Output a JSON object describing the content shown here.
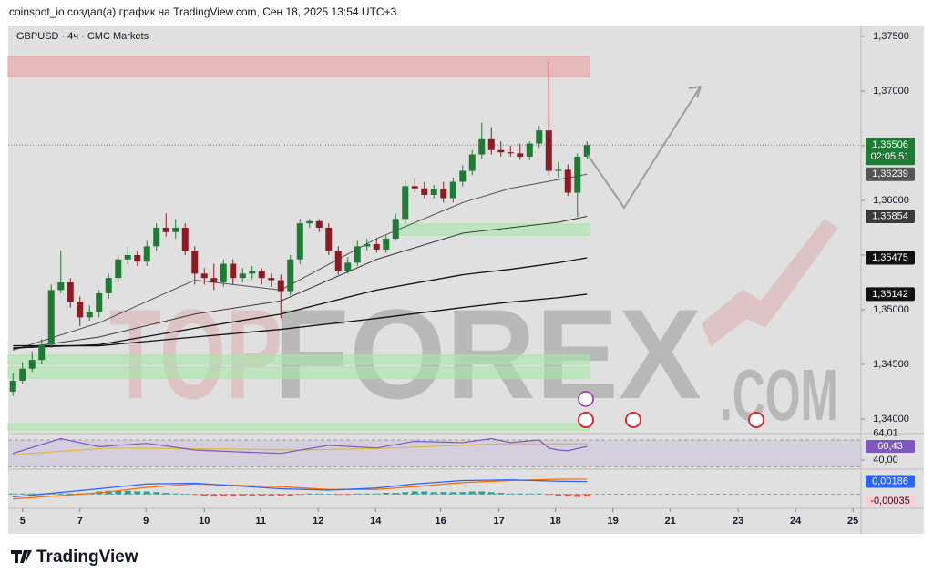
{
  "chart_data": {
    "type": "candlestick",
    "header": "coinspot_io создал(а) график на TradingView.com, Сен 18, 2025 13:54 UTC+3",
    "title": "GBPUSD · 4ч · CMC Markets",
    "x": [
      0,
      1,
      2,
      3,
      4,
      5,
      6,
      7,
      8,
      9,
      10,
      11,
      12,
      13,
      14,
      15,
      16,
      17,
      18,
      19,
      20,
      21,
      22,
      23,
      24,
      25,
      26,
      27,
      28,
      29,
      30,
      31,
      32,
      33,
      34,
      35,
      36,
      37,
      38,
      39,
      40,
      41,
      42,
      43,
      44,
      45,
      46,
      47,
      48,
      49,
      50,
      51,
      52,
      53,
      54,
      55,
      56,
      57,
      58,
      59,
      60
    ],
    "open": [
      1.3425,
      1.3435,
      1.3446,
      1.3454,
      1.3468,
      1.3518,
      1.3525,
      1.3507,
      1.3493,
      1.3498,
      1.3515,
      1.3529,
      1.3546,
      1.355,
      1.3544,
      1.3558,
      1.3575,
      1.3571,
      1.3575,
      1.3554,
      1.3533,
      1.3529,
      1.3525,
      1.3542,
      1.3529,
      1.3533,
      1.3535,
      1.3529,
      1.3527,
      1.3517,
      1.3546,
      1.3579,
      1.3581,
      1.3575,
      1.3554,
      1.3535,
      1.3543,
      1.3558,
      1.356,
      1.3555,
      1.3565,
      1.3583,
      1.3613,
      1.3611,
      1.3605,
      1.361,
      1.3602,
      1.3617,
      1.3627,
      1.3642,
      1.3656,
      1.3646,
      1.3644,
      1.3643,
      1.364,
      1.3652,
      1.3664,
      1.3627,
      1.3628,
      1.3607,
      1.364
    ],
    "high": [
      1.3442,
      1.3452,
      1.3462,
      1.3473,
      1.3523,
      1.3554,
      1.3529,
      1.3512,
      1.3504,
      1.3518,
      1.3533,
      1.355,
      1.3557,
      1.3554,
      1.3563,
      1.3579,
      1.3588,
      1.3583,
      1.3579,
      1.3558,
      1.3538,
      1.3542,
      1.3546,
      1.3546,
      1.3538,
      1.354,
      1.3538,
      1.3533,
      1.3532,
      1.355,
      1.3583,
      1.3583,
      1.3583,
      1.3579,
      1.3558,
      1.3548,
      1.3563,
      1.3565,
      1.3565,
      1.3568,
      1.3588,
      1.3618,
      1.3621,
      1.3617,
      1.3614,
      1.3617,
      1.3621,
      1.3632,
      1.3646,
      1.3671,
      1.3667,
      1.3654,
      1.365,
      1.3652,
      1.3654,
      1.3668,
      1.3727,
      1.3635,
      1.3633,
      1.3643,
      1.3654
    ],
    "low": [
      1.3421,
      1.3432,
      1.3443,
      1.345,
      1.3465,
      1.3515,
      1.3502,
      1.3485,
      1.349,
      1.3493,
      1.351,
      1.3525,
      1.3542,
      1.354,
      1.354,
      1.3554,
      1.3567,
      1.3565,
      1.355,
      1.3523,
      1.3523,
      1.3518,
      1.3521,
      1.3523,
      1.3525,
      1.3528,
      1.3523,
      1.3521,
      1.3492,
      1.3513,
      1.3542,
      1.3575,
      1.3571,
      1.355,
      1.3532,
      1.3533,
      1.354,
      1.3554,
      1.3552,
      1.3552,
      1.3563,
      1.3579,
      1.3607,
      1.3602,
      1.3602,
      1.3598,
      1.3598,
      1.3613,
      1.3623,
      1.3638,
      1.3642,
      1.364,
      1.364,
      1.3637,
      1.3637,
      1.3648,
      1.3623,
      1.3621,
      1.3604,
      1.3585,
      1.3638
    ],
    "close": [
      1.3435,
      1.3446,
      1.3454,
      1.3468,
      1.3518,
      1.3525,
      1.3507,
      1.3493,
      1.3498,
      1.3515,
      1.3529,
      1.3546,
      1.355,
      1.3544,
      1.3558,
      1.3575,
      1.3571,
      1.3575,
      1.3554,
      1.3533,
      1.3529,
      1.3525,
      1.3542,
      1.3529,
      1.3533,
      1.3535,
      1.3529,
      1.3527,
      1.3517,
      1.3546,
      1.3579,
      1.3581,
      1.3575,
      1.3554,
      1.3535,
      1.3543,
      1.3558,
      1.356,
      1.3555,
      1.3565,
      1.3583,
      1.3613,
      1.3611,
      1.3605,
      1.361,
      1.3602,
      1.3617,
      1.3627,
      1.3642,
      1.3656,
      1.3646,
      1.3644,
      1.3643,
      1.364,
      1.3652,
      1.3664,
      1.3627,
      1.3628,
      1.3607,
      1.364,
      1.36506
    ],
    "up_color": "#1e7b34",
    "down_color": "#8e1b24",
    "xlim": [
      -0.5,
      88.64
    ],
    "xticks": [
      {
        "value": 1,
        "label": "5"
      },
      {
        "value": 7,
        "label": "7"
      },
      {
        "value": 13.9,
        "label": "9"
      },
      {
        "value": 20,
        "label": "10"
      },
      {
        "value": 25.9,
        "label": "11"
      },
      {
        "value": 31.9,
        "label": "12"
      },
      {
        "value": 37.9,
        "label": "14"
      },
      {
        "value": 44.7,
        "label": "16"
      },
      {
        "value": 50.8,
        "label": "17"
      },
      {
        "value": 56.7,
        "label": "18"
      },
      {
        "value": 62.7,
        "label": "19"
      },
      {
        "value": 68.7,
        "label": "21"
      },
      {
        "value": 75.8,
        "label": "23"
      },
      {
        "value": 81.8,
        "label": "24"
      },
      {
        "value": 87.8,
        "label": "25"
      }
    ],
    "ylim": [
      1.33883,
      1.37583
    ],
    "yticks": [
      {
        "value": 1.34,
        "label": "1,34000"
      },
      {
        "value": 1.345,
        "label": "1,34500"
      },
      {
        "value": 1.35,
        "label": "1,35000"
      },
      {
        "value": 1.355,
        "label": "1,35500"
      },
      {
        "value": 1.36,
        "label": "1,36000"
      },
      {
        "value": 1.365,
        "label": "1,36500"
      },
      {
        "value": 1.37,
        "label": "1,37000"
      },
      {
        "value": 1.375,
        "label": "1,37500"
      }
    ],
    "grid": false,
    "last_price": {
      "value": 1.36506,
      "label": "1,36506",
      "countdown": "02:05:51",
      "color": "#1e7b34"
    },
    "moving_averages": [
      {
        "color": "#555555",
        "x": [
          0,
          9,
          19,
          28,
          38,
          47,
          52,
          57,
          60
        ],
        "values": [
          1.3463,
          1.3488,
          1.3527,
          1.3518,
          1.3565,
          1.3598,
          1.3611,
          1.3619,
          1.36239
        ],
        "value_label": "1,36239"
      },
      {
        "color": "#3a3a3a",
        "x": [
          0,
          9,
          19,
          28,
          38,
          47,
          52,
          57,
          60
        ],
        "values": [
          1.3464,
          1.3475,
          1.3496,
          1.3508,
          1.3546,
          1.357,
          1.3575,
          1.358,
          1.35854
        ],
        "value_label": "1,35854"
      },
      {
        "color": "#111111",
        "x": [
          0,
          9,
          19,
          28,
          38,
          47,
          52,
          57,
          60
        ],
        "values": [
          1.3465,
          1.3468,
          1.3483,
          1.3496,
          1.3518,
          1.3532,
          1.3537,
          1.3543,
          1.35475
        ],
        "value_label": "1,35475"
      },
      {
        "color": "#111111",
        "x": [
          0,
          9,
          19,
          28,
          38,
          47,
          52,
          57,
          60
        ],
        "values": [
          1.3467,
          1.3467,
          1.3475,
          1.3482,
          1.3492,
          1.3502,
          1.3507,
          1.3511,
          1.35142
        ],
        "value_label": "1,35142"
      }
    ],
    "zones": [
      {
        "color": "#e8a0a0",
        "x": [
          -0.5,
          60.3
        ],
        "y": [
          1.37133,
          1.37317
        ]
      },
      {
        "color": "#a8e6a8",
        "x": [
          40.1,
          60.3
        ],
        "y": [
          1.35683,
          1.35783
        ]
      },
      {
        "color": "#a8e6a8",
        "x": [
          -0.5,
          60.3
        ],
        "y": [
          1.345,
          1.34583
        ]
      },
      {
        "color": "#a8e6a8",
        "x": [
          -0.5,
          60.3
        ],
        "y": [
          1.34375,
          1.34475
        ]
      },
      {
        "color": "#a8e6a8",
        "x": [
          -0.5,
          60.3
        ],
        "y": [
          1.339,
          1.33958
        ]
      }
    ],
    "watermark": [
      "TOP",
      "FOREX",
      ".COM"
    ],
    "rsi": {
      "ylim": [
        27.8,
        76.8
      ],
      "band": [
        30,
        70
      ],
      "yticks": [
        {
          "value": 40,
          "label": "40,00"
        }
      ],
      "color": "#7e57c2",
      "x": [
        0,
        5,
        9,
        14,
        19,
        24,
        28,
        33,
        38,
        42,
        47,
        50,
        52,
        55,
        56,
        57,
        58,
        60
      ],
      "values": [
        50,
        72,
        60,
        65,
        55,
        52,
        50,
        62,
        58,
        68,
        66,
        72,
        66,
        70,
        58,
        55,
        54,
        60.43
      ],
      "value_label": "60,43",
      "ma_color": "#e0b93a",
      "ma_x": [
        0,
        10,
        20,
        30,
        40,
        50,
        60
      ],
      "ma_values": [
        48,
        58,
        57,
        55,
        58,
        64,
        64.01
      ],
      "ma_value_label": "64,01"
    },
    "macd": {
      "ylim": [
        -0.0018,
        0.0034
      ],
      "histogram": [
        0.0001,
        0.0001,
        0.0001,
        0.0001,
        0.0001,
        0.0001,
        0.0001,
        0.0001,
        0.0001,
        0.0004,
        0.0005,
        0.0005,
        0.0005,
        0.0004,
        0.0004,
        0.0003,
        0.0002,
        0.0001,
        0,
        -0.0001,
        -0.0002,
        -0.0003,
        -0.0003,
        -0.0003,
        -0.0002,
        -0.0002,
        -0.0002,
        -0.0002,
        -0.0003,
        -0.0002,
        -0.0001,
        0.0001,
        0.0001,
        0,
        -0.0001,
        -0.0001,
        0.0001,
        0.0001,
        0.0001,
        0.0002,
        0.0002,
        0.0003,
        0.0004,
        0.0004,
        0.0003,
        0.0003,
        0.0003,
        0.0003,
        0.0004,
        0.0004,
        0.0003,
        0.0002,
        0.0001,
        0.0001,
        0.0001,
        0.0001,
        -0.0001,
        -0.0002,
        -0.0003,
        -0.0004,
        -0.00035
      ],
      "histogram_label": "-0,00035",
      "up_color": "#26a69a",
      "down_color": "#ef5350",
      "line_x": [
        0,
        9,
        14,
        19,
        28,
        33,
        38,
        42,
        47,
        52,
        57,
        60
      ],
      "macd_color": "#2962ff",
      "macd": [
        -0.0004,
        0.0008,
        0.0015,
        0.0016,
        0.0008,
        0.0006,
        0.0009,
        0.0015,
        0.002,
        0.0021,
        0.0019,
        0.00186
      ],
      "macd_label": "0,00186",
      "signal_color": "#ff6d00",
      "signal": [
        -0.0007,
        0.0002,
        0.001,
        0.0015,
        0.0011,
        0.0007,
        0.0007,
        0.0011,
        0.0017,
        0.002,
        0.0022,
        0.00221
      ]
    },
    "footer": "TradingView"
  }
}
